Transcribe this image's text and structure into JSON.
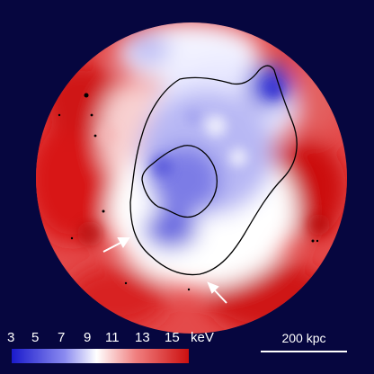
{
  "colors": {
    "background": "#06063f",
    "cold": "#1a1acc",
    "mid": "#ffffff",
    "hot": "#cc0f0f",
    "contour": "#000000",
    "arrow": "#ffffff"
  },
  "colorbar": {
    "ticks": [
      "3",
      "5",
      "7",
      "9",
      "11",
      "13",
      "15"
    ],
    "unit": "keV"
  },
  "scalebar": {
    "label": "200 kpc"
  },
  "features": {
    "arrows": 2,
    "contours": 2
  }
}
